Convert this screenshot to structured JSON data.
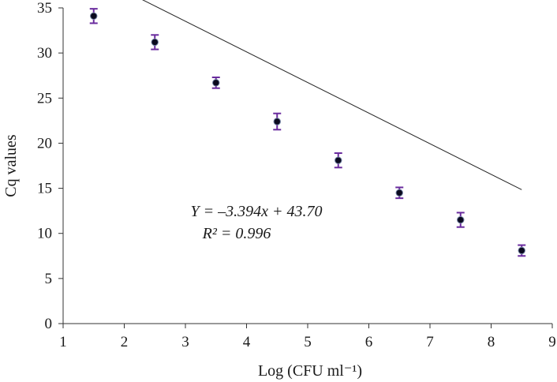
{
  "chart_data": {
    "type": "scatter",
    "xlabel": "Log (CFU ml⁻¹)",
    "ylabel": "Cq values",
    "xlim": [
      1,
      9
    ],
    "ylim": [
      0,
      35
    ],
    "x_ticks": [
      1,
      2,
      3,
      4,
      5,
      6,
      7,
      8,
      9
    ],
    "y_ticks": [
      0,
      5,
      10,
      15,
      20,
      25,
      30,
      35
    ],
    "grid": false,
    "points": [
      {
        "x": 1.5,
        "y": 34.1,
        "err": 0.8
      },
      {
        "x": 2.5,
        "y": 31.2,
        "err": 0.8
      },
      {
        "x": 3.5,
        "y": 26.7,
        "err": 0.6
      },
      {
        "x": 4.5,
        "y": 22.4,
        "err": 0.9
      },
      {
        "x": 5.5,
        "y": 18.1,
        "err": 0.8
      },
      {
        "x": 6.5,
        "y": 14.5,
        "err": 0.6
      },
      {
        "x": 7.5,
        "y": 11.5,
        "err": 0.8
      },
      {
        "x": 8.5,
        "y": 8.1,
        "err": 0.6
      }
    ],
    "trendline": {
      "slope": -3.394,
      "intercept": 43.7,
      "x_range": [
        1.5,
        8.5
      ]
    },
    "equation_text": "Y = –3.394x + 43.70",
    "r2_text": "R² = 0.996",
    "colors": {
      "marker": "#0a0a1e",
      "errorbar": "#6a2c9e",
      "trendline": "#222222",
      "axis": "#333333"
    }
  }
}
